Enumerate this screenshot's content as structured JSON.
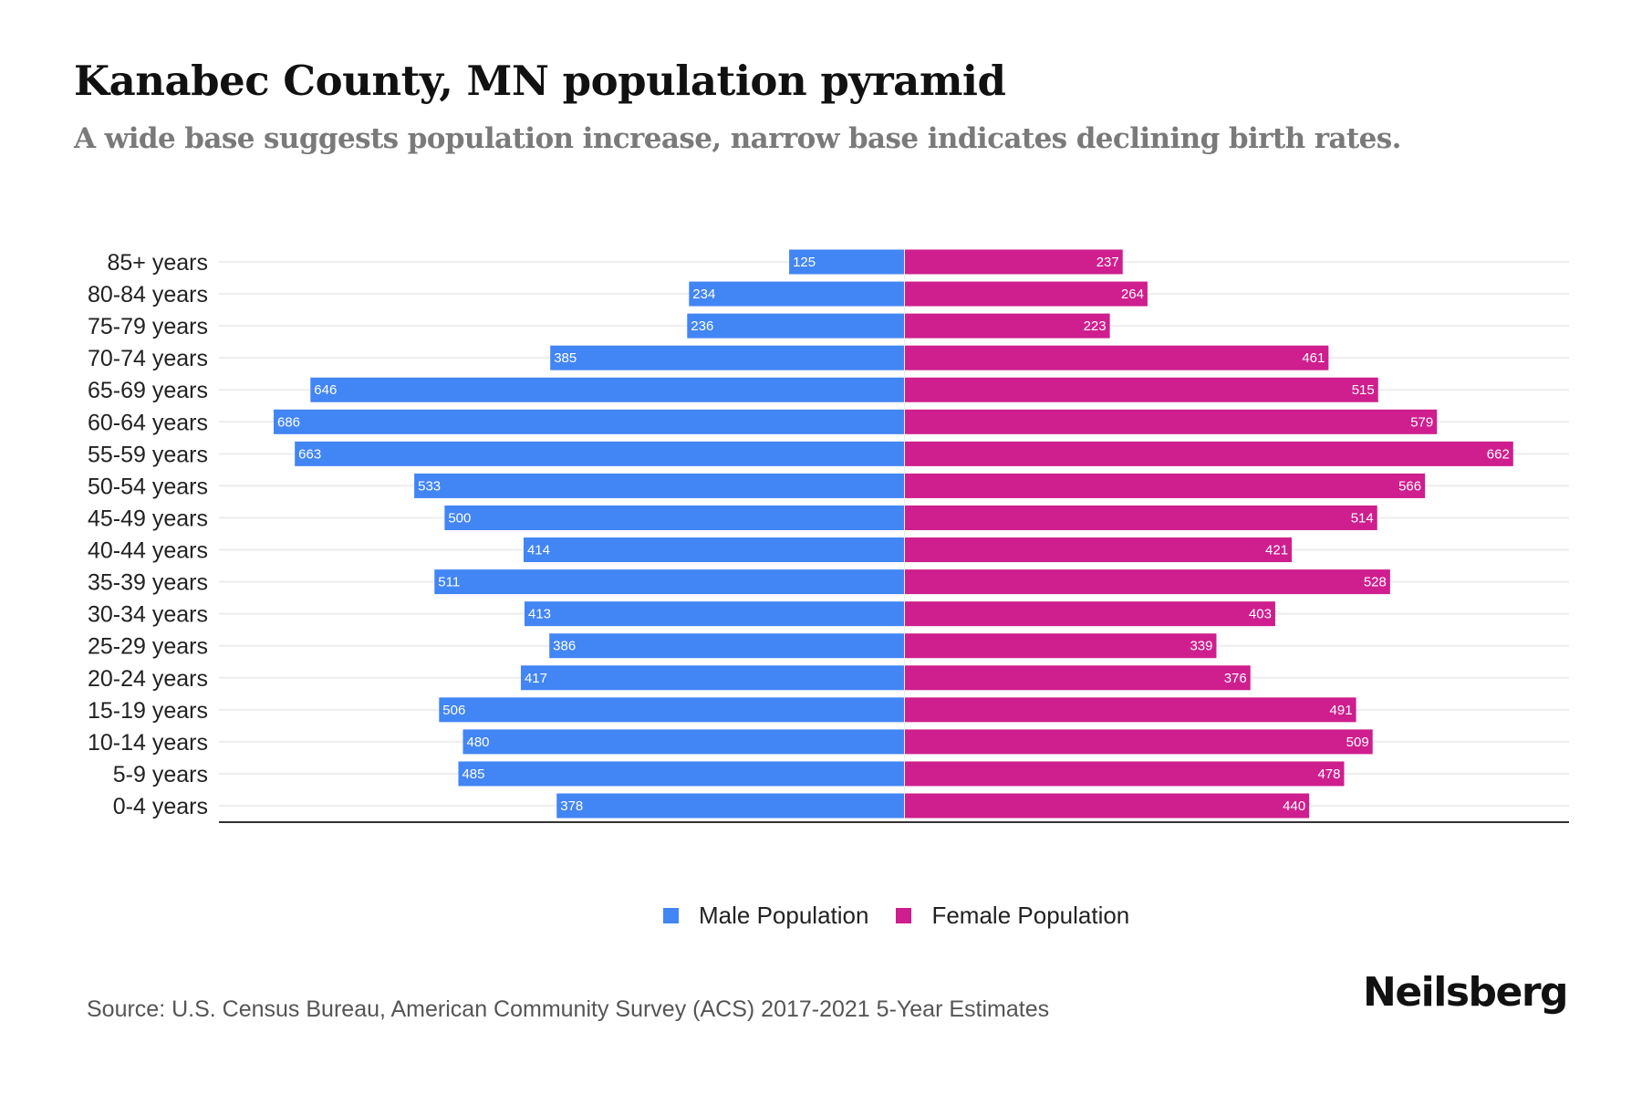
{
  "header": {
    "title": "Kanabec County, MN population pyramid",
    "subtitle": "A wide base suggests population increase, narrow base indicates declining birth rates."
  },
  "colors": {
    "male": "#4285F4",
    "female": "#CF1E8E",
    "gridline": "#eeeeee",
    "axis": "#333333"
  },
  "chart_data": {
    "type": "bar",
    "orientation": "horizontal-pyramid",
    "title": "Kanabec County, MN population pyramid",
    "subtitle": "A wide base suggests population increase, narrow base indicates declining birth rates.",
    "xlabel": "",
    "ylabel": "",
    "grid": true,
    "legend_position": "bottom-center",
    "categories": [
      "85+ years",
      "80-84 years",
      "75-79 years",
      "70-74 years",
      "65-69 years",
      "60-64 years",
      "55-59 years",
      "50-54 years",
      "45-49 years",
      "40-44 years",
      "35-39 years",
      "30-34 years",
      "25-29 years",
      "20-24 years",
      "15-19 years",
      "10-14 years",
      "5-9 years",
      "0-4 years"
    ],
    "series": [
      {
        "name": "Male Population",
        "side": "left",
        "values": [
          125,
          234,
          236,
          385,
          646,
          686,
          663,
          533,
          500,
          414,
          511,
          413,
          386,
          417,
          506,
          480,
          485,
          378
        ]
      },
      {
        "name": "Female Population",
        "side": "right",
        "values": [
          237,
          264,
          223,
          461,
          515,
          579,
          662,
          566,
          514,
          421,
          528,
          403,
          339,
          376,
          491,
          509,
          478,
          440
        ]
      }
    ],
    "xlim": [
      -686,
      686
    ]
  },
  "legend": {
    "male_label": "Male Population",
    "female_label": "Female Population"
  },
  "footer": {
    "source": "Source: U.S. Census Bureau, American Community Survey (ACS) 2017-2021 5-Year Estimates",
    "brand": "Neilsberg"
  }
}
